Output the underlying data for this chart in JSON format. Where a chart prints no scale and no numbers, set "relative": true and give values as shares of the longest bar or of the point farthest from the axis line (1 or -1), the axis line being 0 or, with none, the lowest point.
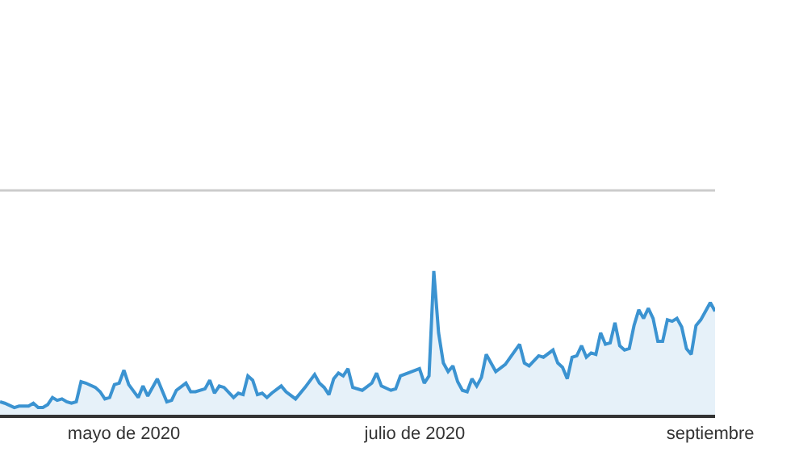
{
  "chart_data": {
    "type": "area",
    "relative": true,
    "legend": false,
    "marker": "none",
    "line_style": "solid",
    "xlim": [
      "2020-04-05",
      "2020-09-02"
    ],
    "xticks": [
      {
        "value": "2020-05-01",
        "label": "mayo de 2020"
      },
      {
        "value": "2020-07-01",
        "label": "julio de 2020"
      },
      {
        "value": "2020-09-01",
        "label": "septiembre"
      }
    ],
    "x": [
      "2020-04-05",
      "2020-04-06",
      "2020-04-08",
      "2020-04-09",
      "2020-04-11",
      "2020-04-12",
      "2020-04-13",
      "2020-04-14",
      "2020-04-15",
      "2020-04-16",
      "2020-04-17",
      "2020-04-18",
      "2020-04-19",
      "2020-04-20",
      "2020-04-21",
      "2020-04-22",
      "2020-04-23",
      "2020-04-25",
      "2020-04-26",
      "2020-04-27",
      "2020-04-28",
      "2020-04-29",
      "2020-04-30",
      "2020-05-01",
      "2020-05-02",
      "2020-05-04",
      "2020-05-05",
      "2020-05-06",
      "2020-05-08",
      "2020-05-10",
      "2020-05-11",
      "2020-05-12",
      "2020-05-14",
      "2020-05-15",
      "2020-05-16",
      "2020-05-18",
      "2020-05-19",
      "2020-05-20",
      "2020-05-21",
      "2020-05-22",
      "2020-05-24",
      "2020-05-25",
      "2020-05-26",
      "2020-05-27",
      "2020-05-28",
      "2020-05-29",
      "2020-05-30",
      "2020-05-31",
      "2020-06-01",
      "2020-06-03",
      "2020-06-04",
      "2020-06-06",
      "2020-06-08",
      "2020-06-10",
      "2020-06-11",
      "2020-06-12",
      "2020-06-13",
      "2020-06-14",
      "2020-06-15",
      "2020-06-16",
      "2020-06-17",
      "2020-06-18",
      "2020-06-20",
      "2020-06-22",
      "2020-06-23",
      "2020-06-24",
      "2020-06-26",
      "2020-06-27",
      "2020-06-28",
      "2020-07-02",
      "2020-07-03",
      "2020-07-04",
      "2020-07-05",
      "2020-07-06",
      "2020-07-07",
      "2020-07-08",
      "2020-07-09",
      "2020-07-10",
      "2020-07-11",
      "2020-07-12",
      "2020-07-13",
      "2020-07-14",
      "2020-07-15",
      "2020-07-16",
      "2020-07-18",
      "2020-07-20",
      "2020-07-23",
      "2020-07-24",
      "2020-07-25",
      "2020-07-27",
      "2020-07-28",
      "2020-07-30",
      "2020-07-31",
      "2020-08-01",
      "2020-08-02",
      "2020-08-03",
      "2020-08-04",
      "2020-08-05",
      "2020-08-06",
      "2020-08-07",
      "2020-08-08",
      "2020-08-09",
      "2020-08-10",
      "2020-08-11",
      "2020-08-12",
      "2020-08-13",
      "2020-08-14",
      "2020-08-15",
      "2020-08-16",
      "2020-08-17",
      "2020-08-18",
      "2020-08-19",
      "2020-08-20",
      "2020-08-21",
      "2020-08-22",
      "2020-08-23",
      "2020-08-24",
      "2020-08-25",
      "2020-08-26",
      "2020-08-27",
      "2020-08-28",
      "2020-08-29",
      "2020-08-30",
      "2020-08-31",
      "2020-09-01",
      "2020-09-02"
    ],
    "series": [
      {
        "color": "#3b93d1",
        "values": [
          0.09,
          0.08,
          0.05,
          0.06,
          0.06,
          0.08,
          0.05,
          0.05,
          0.07,
          0.12,
          0.1,
          0.11,
          0.09,
          0.08,
          0.09,
          0.23,
          0.22,
          0.19,
          0.16,
          0.11,
          0.12,
          0.21,
          0.22,
          0.31,
          0.21,
          0.12,
          0.2,
          0.13,
          0.25,
          0.09,
          0.1,
          0.17,
          0.22,
          0.16,
          0.16,
          0.18,
          0.24,
          0.15,
          0.2,
          0.19,
          0.12,
          0.15,
          0.14,
          0.27,
          0.24,
          0.14,
          0.15,
          0.12,
          0.15,
          0.2,
          0.16,
          0.11,
          0.19,
          0.28,
          0.22,
          0.19,
          0.14,
          0.25,
          0.29,
          0.27,
          0.32,
          0.19,
          0.17,
          0.22,
          0.29,
          0.2,
          0.17,
          0.18,
          0.27,
          0.32,
          0.22,
          0.27,
          1,
          0.57,
          0.36,
          0.3,
          0.34,
          0.23,
          0.17,
          0.16,
          0.25,
          0.2,
          0.26,
          0.42,
          0.3,
          0.35,
          0.49,
          0.36,
          0.34,
          0.41,
          0.4,
          0.45,
          0.36,
          0.33,
          0.25,
          0.4,
          0.41,
          0.48,
          0.4,
          0.43,
          0.42,
          0.57,
          0.49,
          0.5,
          0.64,
          0.48,
          0.45,
          0.46,
          0.62,
          0.73,
          0.67,
          0.74,
          0.67,
          0.51,
          0.51,
          0.66,
          0.65,
          0.67,
          0.61,
          0.46,
          0.42,
          0.62,
          0.66,
          0.72,
          0.78,
          0.72
        ]
      }
    ]
  }
}
